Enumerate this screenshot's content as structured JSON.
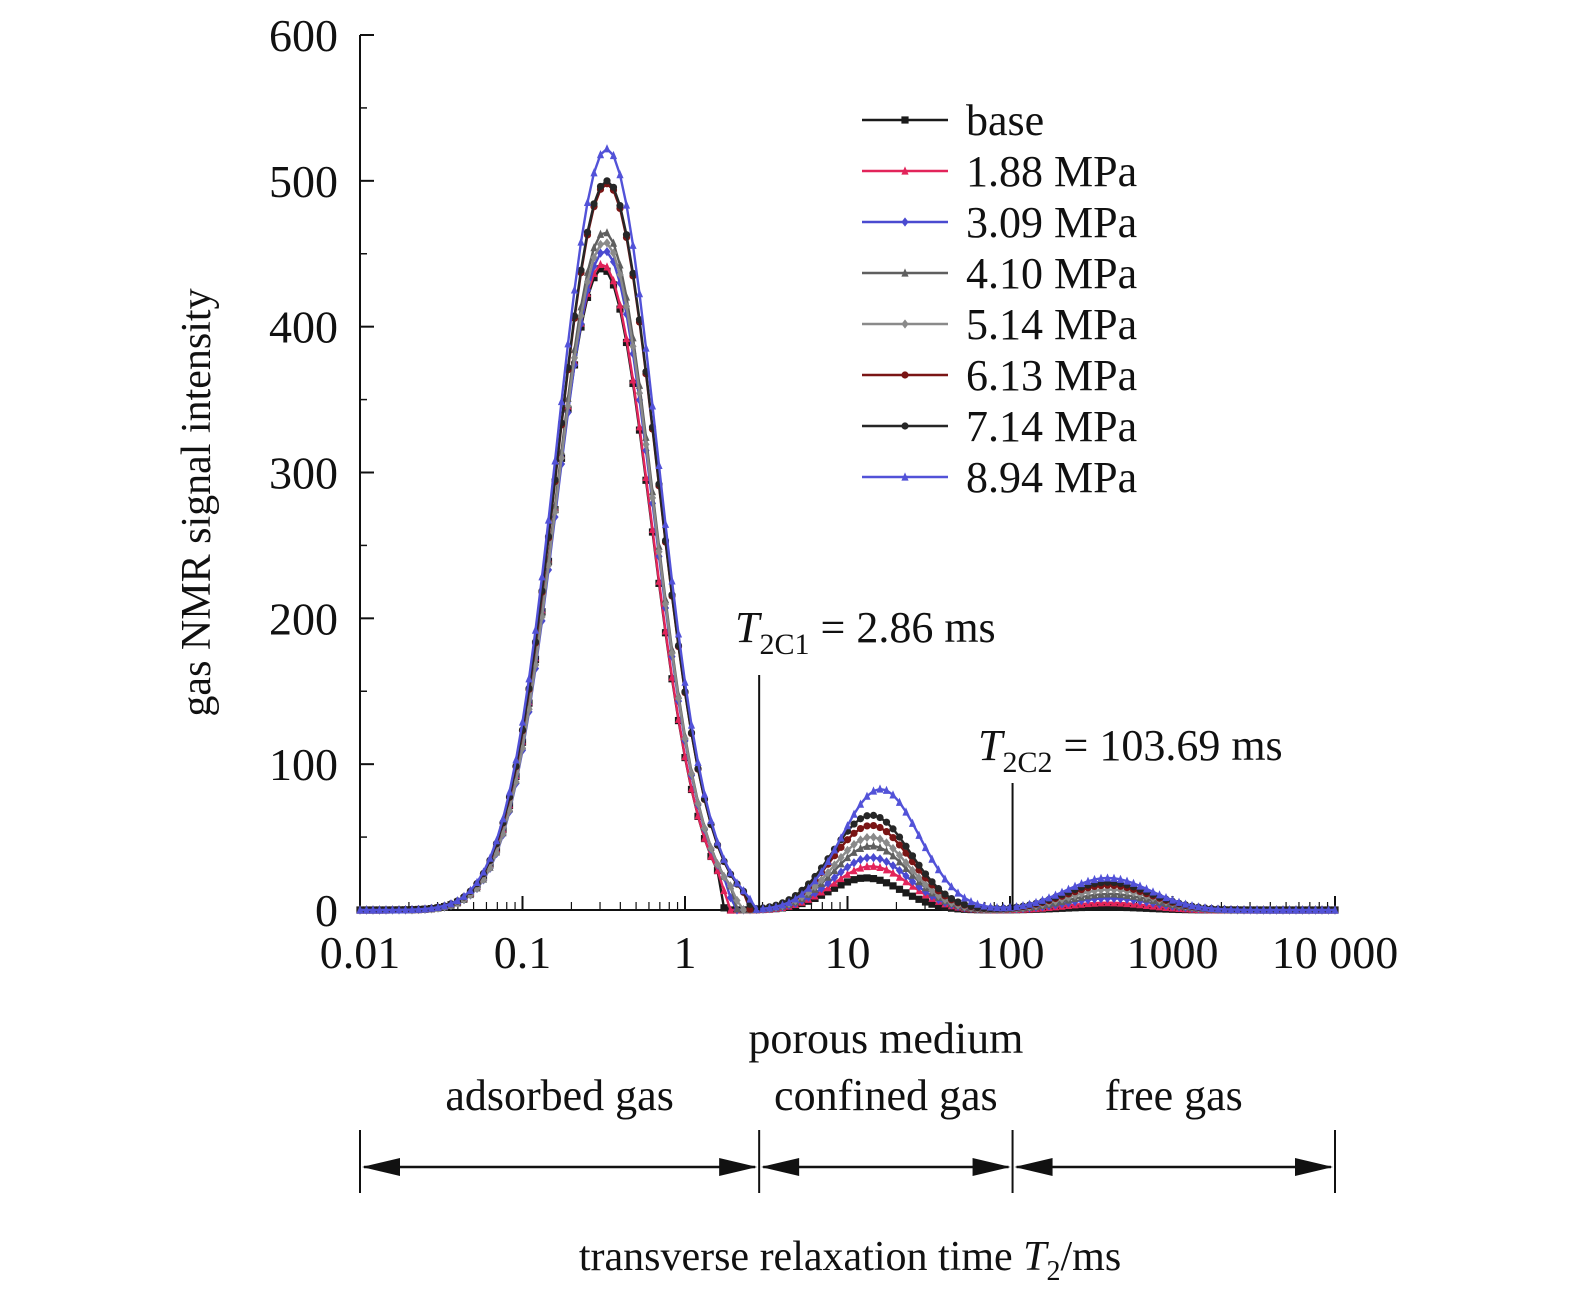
{
  "chart_data": {
    "type": "line",
    "x_scale": "log",
    "xlim": [
      0.01,
      10000
    ],
    "ylim": [
      0,
      600
    ],
    "grid": false,
    "legend_position": "top-right",
    "xlabel": {
      "prefix": "transverse relaxation time ",
      "var": "T",
      "sub": "2",
      "unit": "/ms"
    },
    "ylabel": "gas NMR signal intensity",
    "x_ticks": [
      {
        "value": 0.01,
        "label": "0.01"
      },
      {
        "value": 0.1,
        "label": "0.1"
      },
      {
        "value": 1,
        "label": "1"
      },
      {
        "value": 10,
        "label": "10"
      },
      {
        "value": 100,
        "label": "100"
      },
      {
        "value": 1000,
        "label": "1000"
      },
      {
        "value": 10000,
        "label": "10 000"
      }
    ],
    "y_ticks": [
      {
        "value": 0,
        "label": "0"
      },
      {
        "value": 100,
        "label": "100"
      },
      {
        "value": 200,
        "label": "200"
      },
      {
        "value": 300,
        "label": "300"
      },
      {
        "value": 400,
        "label": "400"
      },
      {
        "value": 500,
        "label": "500"
      },
      {
        "value": 600,
        "label": "600"
      }
    ],
    "series": [
      {
        "name": "base",
        "color": "#1a1a1a",
        "marker": "square",
        "peaks": [
          {
            "center": 0.31,
            "height": 440,
            "width": 0.3,
            "cut": 1.75
          },
          {
            "center": 13,
            "height": 22,
            "width": 0.22
          },
          {
            "center": 380,
            "height": 2,
            "width": 0.25
          }
        ]
      },
      {
        "name": "1.88 MPa",
        "color": "#e2245a",
        "marker": "triangle",
        "peaks": [
          {
            "center": 0.31,
            "height": 443,
            "width": 0.3,
            "cut": 1.85
          },
          {
            "center": 14,
            "height": 30,
            "width": 0.23
          },
          {
            "center": 400,
            "height": 5,
            "width": 0.25
          }
        ]
      },
      {
        "name": "3.09 MPa",
        "color": "#4a4ad0",
        "marker": "diamond",
        "peaks": [
          {
            "center": 0.32,
            "height": 452,
            "width": 0.3,
            "cut": 2.0
          },
          {
            "center": 14,
            "height": 36,
            "width": 0.23
          },
          {
            "center": 410,
            "height": 8,
            "width": 0.26
          }
        ]
      },
      {
        "name": "4.10 MPa",
        "color": "#5f5f5f",
        "marker": "triangle",
        "peaks": [
          {
            "center": 0.32,
            "height": 465,
            "width": 0.3,
            "cut": 2.1
          },
          {
            "center": 14,
            "height": 44,
            "width": 0.23
          },
          {
            "center": 410,
            "height": 11,
            "width": 0.26
          }
        ]
      },
      {
        "name": "5.14 MPa",
        "color": "#8a8a8a",
        "marker": "diamond",
        "peaks": [
          {
            "center": 0.32,
            "height": 458,
            "width": 0.3,
            "cut": 2.2
          },
          {
            "center": 14,
            "height": 50,
            "width": 0.23
          },
          {
            "center": 410,
            "height": 14,
            "width": 0.26
          }
        ]
      },
      {
        "name": "6.13 MPa",
        "color": "#7a1515",
        "marker": "circle",
        "peaks": [
          {
            "center": 0.33,
            "height": 498,
            "width": 0.31,
            "cut": 2.5
          },
          {
            "center": 14,
            "height": 58,
            "width": 0.24
          },
          {
            "center": 400,
            "height": 17,
            "width": 0.26
          }
        ]
      },
      {
        "name": "7.14 MPa",
        "color": "#262626",
        "marker": "circle",
        "peaks": [
          {
            "center": 0.33,
            "height": 500,
            "width": 0.31,
            "cut": 2.6
          },
          {
            "center": 14,
            "height": 65,
            "width": 0.24
          },
          {
            "center": 400,
            "height": 19,
            "width": 0.26
          }
        ]
      },
      {
        "name": "8.94 MPa",
        "color": "#5252d8",
        "marker": "triangle",
        "peaks": [
          {
            "center": 0.33,
            "height": 522,
            "width": 0.31,
            "cut": 2.7
          },
          {
            "center": 16,
            "height": 83,
            "width": 0.24
          },
          {
            "center": 400,
            "height": 22,
            "width": 0.26
          }
        ]
      }
    ],
    "annotations": [
      {
        "var": "T",
        "sub": "2C1",
        "text": " = 2.86 ms",
        "x": 2.86
      },
      {
        "var": "T",
        "sub": "2C2",
        "text": " = 103.69 ms",
        "x": 103.69
      }
    ],
    "regions": [
      {
        "lines": [
          "adsorbed gas"
        ],
        "from": 0.01,
        "to": 2.86
      },
      {
        "lines": [
          "porous medium",
          "confined gas"
        ],
        "from": 2.86,
        "to": 103.69
      },
      {
        "lines": [
          "free gas"
        ],
        "from": 103.69,
        "to": 10000
      }
    ]
  }
}
